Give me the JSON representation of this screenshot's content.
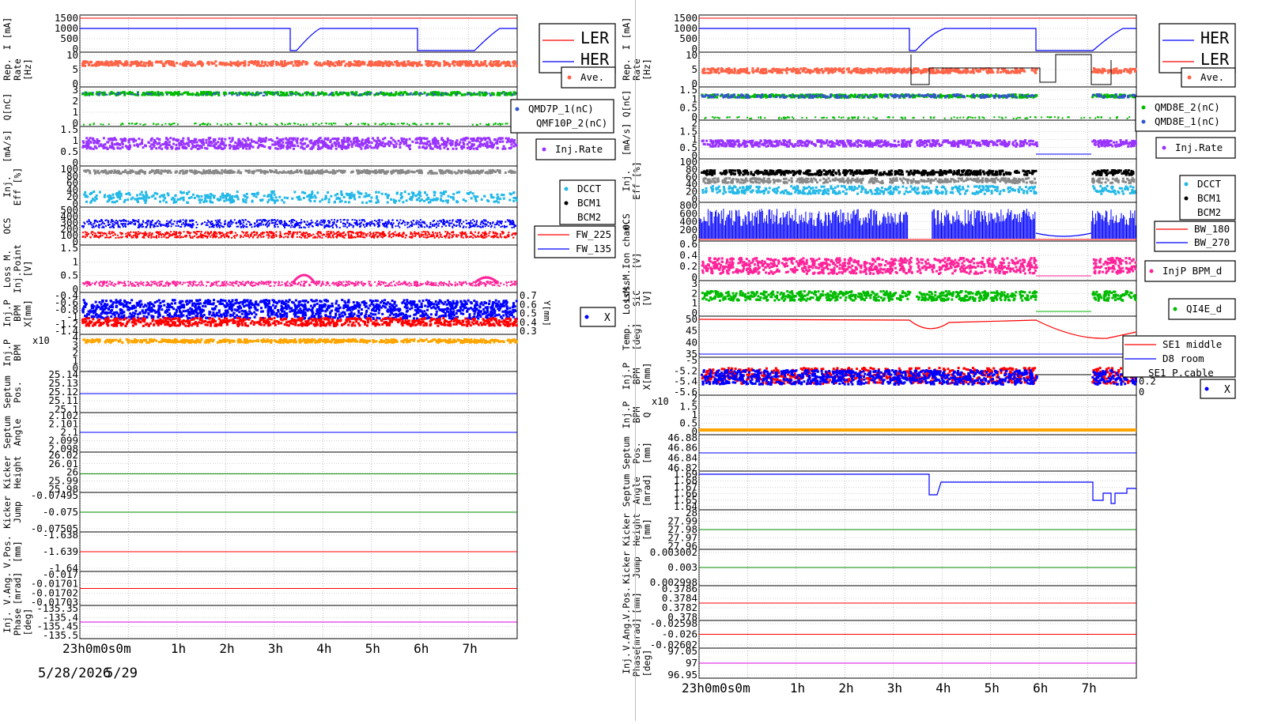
{
  "colors": {
    "her": "#0000ff",
    "ler": "#ff0000",
    "rate": "#ff6347",
    "green": "#00bb00",
    "blue": "#3355cc",
    "purple": "#9933ff",
    "cyan": "#22b8e8",
    "gray": "#888888",
    "black": "#000000",
    "pink": "#ff2299",
    "orange": "#ffa500",
    "magenta": "#dd00dd",
    "darkgreen": "#008800"
  },
  "left": {
    "time_ticks": [
      "23h0m0s0m",
      "1h",
      "2h",
      "3h",
      "4h",
      "5h",
      "6h",
      "7h"
    ],
    "date_labels": [
      "5/28/2026",
      "5/29"
    ],
    "legend_main": [
      "LER",
      "HER"
    ],
    "panels": [
      {
        "id": "current",
        "ylabel": [
          "I [mA]"
        ],
        "ticks": [
          "1500",
          "1000",
          "500",
          "0"
        ],
        "legend": []
      },
      {
        "id": "reprate",
        "ylabel": [
          "Rep.",
          "Rate",
          "[Hz]"
        ],
        "ticks": [
          "10",
          "5",
          "0"
        ],
        "legend": [
          "Ave."
        ]
      },
      {
        "id": "charge",
        "ylabel": [
          "Q[nC]"
        ],
        "ticks": [
          "3",
          "2",
          "1",
          "0"
        ],
        "legend": [
          "QMD7P_1(nC)",
          "QMF10P_2(nC)"
        ]
      },
      {
        "id": "injrate",
        "ylabel": [
          "[mA/s]"
        ],
        "ticks": [
          "1.5",
          "1",
          "0.5",
          "0"
        ],
        "legend": [
          "Inj.Rate"
        ]
      },
      {
        "id": "eff",
        "ylabel": [
          "Inj.",
          "Eff [%]"
        ],
        "ticks": [
          "100",
          "80",
          "60",
          "40",
          "20",
          "0"
        ],
        "legend": [
          "DCCT",
          "BCM1",
          "BCM2"
        ]
      },
      {
        "id": "ocs",
        "ylabel": [
          "OCS"
        ],
        "ticks": [
          "500",
          "400",
          "300",
          "200",
          "100",
          "0"
        ],
        "legend": [
          "FW_225",
          "FW_135"
        ]
      },
      {
        "id": "loss",
        "ylabel": [
          "Loss M.",
          "Inj.Point",
          "[V]"
        ],
        "ticks": [
          "1.5",
          "1",
          "0.5",
          "0"
        ],
        "legend": []
      },
      {
        "id": "bpm",
        "ylabel": [
          "Inj.P",
          "BPM",
          "X[mm]"
        ],
        "ticks": [
          "-0.4",
          "-0.6",
          "-0.8",
          "-1",
          "-1.2",
          "-1.4"
        ],
        "ticks_right": [
          "0.7",
          "0.6",
          "0.5",
          "0.4",
          "0.3"
        ],
        "right_label": "Y[mm]",
        "legend": [
          "X"
        ]
      },
      {
        "id": "bpm2",
        "ylabel": [
          "Inj.P",
          "BPM"
        ],
        "ticks": [
          "4",
          "3",
          "2",
          "1",
          "0"
        ],
        "exp_label": "x10",
        "legend": []
      },
      {
        "id": "septpos",
        "ylabel": [
          "Septum",
          "Pos."
        ],
        "ticks": [
          "25.14",
          "25.13",
          "25.12",
          "25.11",
          "25.1"
        ],
        "legend": []
      },
      {
        "id": "septang",
        "ylabel": [
          "Septum",
          "Angle"
        ],
        "ticks": [
          "2.102",
          "2.101",
          "2.1",
          "2.099",
          "2.098"
        ],
        "legend": []
      },
      {
        "id": "kickh",
        "ylabel": [
          "Kicker",
          "Height"
        ],
        "ticks": [
          "26.02",
          "26.01",
          "26",
          "25.99",
          "25.98"
        ],
        "legend": []
      },
      {
        "id": "kickj",
        "ylabel": [
          "Kicker",
          "Jump"
        ],
        "ticks": [
          "-0.07495",
          "-0.075",
          "-0.07505"
        ],
        "legend": []
      },
      {
        "id": "vpos",
        "ylabel": [
          "V.Pos.",
          "[mm]"
        ],
        "ticks": [
          "-1.638",
          "-1.639",
          "-1.64"
        ],
        "legend": []
      },
      {
        "id": "vang",
        "ylabel": [
          "V.Ang.",
          "[mrad]"
        ],
        "ticks": [
          "-0.017",
          "-0.01701",
          "-0.01702",
          "-0.01703"
        ],
        "legend": []
      },
      {
        "id": "phase",
        "ylabel": [
          "Inj.",
          "Phase",
          "[deg]"
        ],
        "ticks": [
          "-135.35",
          "-135.4",
          "-135.45",
          "-135.5"
        ],
        "legend": []
      }
    ]
  },
  "right": {
    "time_ticks": [
      "23h0m0s0m",
      "1h",
      "2h",
      "3h",
      "4h",
      "5h",
      "6h",
      "7h"
    ],
    "legend_main": [
      "HER",
      "LER"
    ],
    "panels": [
      {
        "id": "current",
        "ylabel": [
          "I [mA]"
        ],
        "ticks": [
          "1500",
          "1000",
          "500",
          "0"
        ],
        "legend": []
      },
      {
        "id": "reprate",
        "ylabel": [
          "Rep.",
          "Rate",
          "[Hz]"
        ],
        "ticks": [
          "10",
          "5",
          "0"
        ],
        "legend": [
          "Ave."
        ]
      },
      {
        "id": "charge",
        "ylabel": [
          "Q[nC]"
        ],
        "ticks": [
          "1.5",
          "1",
          "0.5",
          "0"
        ],
        "legend": [
          "QMD8E_2(nC)",
          "QMD8E_1(nC)"
        ]
      },
      {
        "id": "injrate",
        "ylabel": [
          "[mA/s]"
        ],
        "ticks": [
          "2",
          "1.5",
          "1",
          "0.5",
          "0"
        ],
        "legend": [
          "Inj.Rate"
        ]
      },
      {
        "id": "eff",
        "ylabel": [
          "Inj.",
          "Eff [%]"
        ],
        "ticks": [
          "100",
          "80",
          "60",
          "40",
          "20",
          "0"
        ],
        "legend": [
          "DCCT",
          "BCM1",
          "BCM2"
        ]
      },
      {
        "id": "ocs",
        "ylabel": [
          "OCS"
        ],
        "ticks": [
          "800",
          "600",
          "400",
          "200",
          "0"
        ],
        "legend": [
          "BW_180",
          "BW_270"
        ]
      },
      {
        "id": "ionch",
        "ylabel": [
          "LossM.Ion cham.",
          "[V]"
        ],
        "ticks": [
          "0.6",
          "0.4",
          "0.2",
          "0"
        ],
        "legend": [
          "InjP BPM_d"
        ]
      },
      {
        "id": "sic",
        "ylabel": [
          "LossM.",
          "SiC",
          "[V]"
        ],
        "ticks": [
          "3",
          "2",
          "1",
          "0"
        ],
        "legend": [
          "QI4E_d"
        ]
      },
      {
        "id": "temp",
        "ylabel": [
          "Temp.",
          "[deg]"
        ],
        "ticks": [
          "50",
          "45",
          "40",
          "35"
        ],
        "legend": [
          "SE1 middle",
          "D8 room",
          "SE1 P.cable"
        ]
      },
      {
        "id": "bpm",
        "ylabel": [
          "Inj.P",
          "BPM",
          "X[mm]"
        ],
        "ticks": [
          "-5",
          "-5.2",
          "-5.4",
          "-5.6"
        ],
        "ticks_right": [
          "0.6",
          "0.4",
          "0.2",
          "0"
        ],
        "legend": [
          "X"
        ]
      },
      {
        "id": "bpm2",
        "ylabel": [
          "Inj.P",
          "BPM",
          "Q"
        ],
        "ticks": [
          "2",
          "1.5",
          "1",
          "0.5",
          "0"
        ],
        "exp_label": "x10",
        "legend": []
      },
      {
        "id": "septpos",
        "ylabel": [
          "Septum",
          "Pos.",
          "[mm]"
        ],
        "ticks": [
          "46.88",
          "46.86",
          "46.84",
          "46.82"
        ],
        "legend": []
      },
      {
        "id": "septang",
        "ylabel": [
          "Septum",
          "Angle",
          "[mrad]"
        ],
        "ticks": [
          "1.69",
          "1.68",
          "1.67",
          "1.66",
          "1.65",
          "1.64"
        ],
        "legend": []
      },
      {
        "id": "kickh",
        "ylabel": [
          "Kicker",
          "Height",
          "[mm]"
        ],
        "ticks": [
          "28",
          "27.99",
          "27.98",
          "27.97",
          "27.96"
        ],
        "legend": []
      },
      {
        "id": "kickj",
        "ylabel": [
          "Kicker",
          "Jump"
        ],
        "ticks": [
          "0.003002",
          "0.003",
          "0.002998"
        ],
        "legend": []
      },
      {
        "id": "vpos",
        "ylabel": [
          "V.Pos.",
          "[mm]"
        ],
        "ticks": [
          "0.3786",
          "0.3784",
          "0.3782",
          "0.378"
        ],
        "legend": []
      },
      {
        "id": "vang",
        "ylabel": [
          "V.Ang.",
          "[mrad]"
        ],
        "ticks": [
          "-0.02598",
          "-0.026",
          "-0.02602"
        ],
        "legend": []
      },
      {
        "id": "phase",
        "ylabel": [
          "Inj.",
          "Phase",
          "[deg]"
        ],
        "ticks": [
          "97.05",
          "97",
          "96.95"
        ],
        "legend": []
      }
    ]
  },
  "chart_data": [
    {
      "type": "line",
      "title": "",
      "x": [
        "23h",
        "0h",
        "1h",
        "2h",
        "3h",
        "4h",
        "5h",
        "6h",
        "7h"
      ],
      "series": [
        {
          "name": "LER",
          "panel": "I [mA]",
          "values": [
            1550,
            1550,
            1550,
            1550,
            1550,
            1550,
            1550,
            1550,
            1550
          ]
        },
        {
          "name": "HER",
          "panel": "I [mA]",
          "values": [
            1150,
            1150,
            1150,
            1150,
            0,
            1150,
            1150,
            0,
            1150
          ]
        },
        {
          "name": "Ave.",
          "panel": "Rep. Rate [Hz]",
          "values": [
            9.5,
            9.5,
            9.5,
            9.5,
            9.5,
            9.5,
            9.5,
            9.5,
            9.5
          ]
        },
        {
          "name": "Inj.Rate",
          "panel": "[mA/s]",
          "values": [
            1.0,
            1.2,
            1.0,
            1.1,
            0.9,
            1.0,
            1.1,
            1.0,
            0.9
          ]
        },
        {
          "name": "FW_225",
          "panel": "OCS",
          "values": [
            210,
            210,
            210,
            210,
            210,
            210,
            210,
            210,
            210
          ]
        },
        {
          "name": "FW_135",
          "panel": "OCS",
          "values": [
            280,
            280,
            280,
            280,
            280,
            280,
            280,
            280,
            280
          ]
        }
      ]
    },
    {
      "type": "line",
      "title": "",
      "x": [
        "23h",
        "0h",
        "1h",
        "2h",
        "3h",
        "4h",
        "5h",
        "6h",
        "7h"
      ],
      "series": [
        {
          "name": "HER",
          "panel": "I [mA]",
          "values": [
            1150,
            1150,
            1150,
            1150,
            0,
            1150,
            1150,
            0,
            1150
          ]
        },
        {
          "name": "LER",
          "panel": "I [mA]",
          "values": [
            1550,
            1550,
            1550,
            1550,
            1550,
            1550,
            1550,
            1550,
            1550
          ]
        },
        {
          "name": "Ave.",
          "panel": "Rep. Rate [Hz]",
          "values": [
            6.5,
            6.5,
            6.5,
            6.5,
            6.5,
            6.5,
            6.5,
            0,
            6.5
          ]
        },
        {
          "name": "SE1 middle",
          "panel": "Temp. [deg]",
          "values": [
            50,
            50,
            50,
            50,
            50,
            47,
            50,
            42,
            41
          ]
        },
        {
          "name": "D8 room",
          "panel": "Temp. [deg]",
          "values": [
            35,
            35,
            35,
            35,
            35,
            35,
            35,
            35,
            35
          ]
        }
      ]
    }
  ]
}
